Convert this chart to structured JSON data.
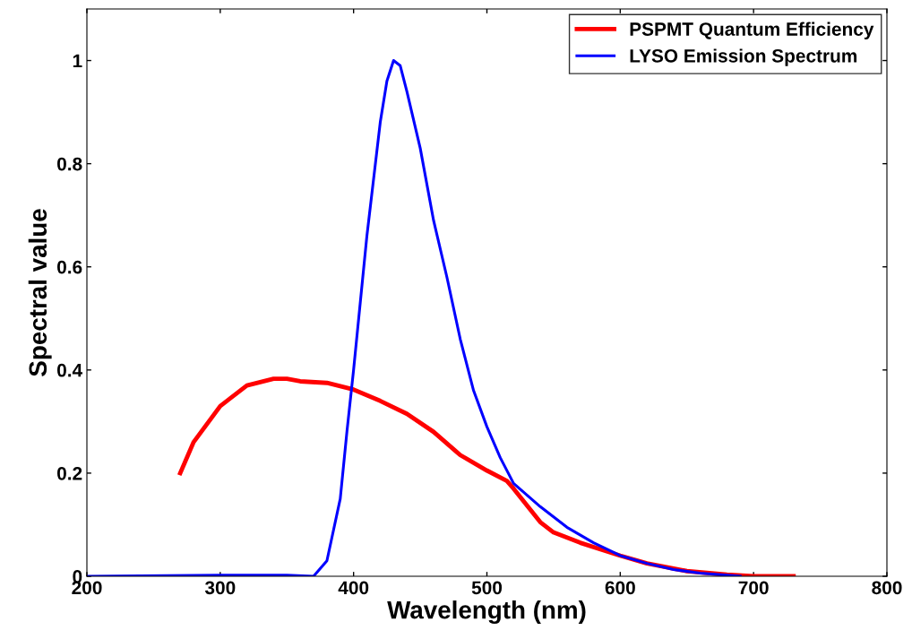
{
  "chart_data": {
    "type": "line",
    "xlabel": "Wavelength (nm)",
    "ylabel": "Spectral value",
    "xlim": [
      200,
      800
    ],
    "ylim": [
      0,
      1.1
    ],
    "xticks": [
      200,
      300,
      400,
      500,
      600,
      700,
      800
    ],
    "yticks": [
      0,
      0.2,
      0.4,
      0.6,
      0.8,
      1
    ],
    "legend": "top right",
    "grid": false,
    "marker": "none",
    "line_style": "solid",
    "series": [
      {
        "name": "PSPMT Quantum Efficiency",
        "color": "#ff0000",
        "x": [
          270,
          280,
          300,
          320,
          340,
          350,
          360,
          380,
          400,
          420,
          440,
          460,
          480,
          500,
          515,
          520,
          540,
          550,
          570,
          600,
          620,
          650,
          680,
          700,
          730
        ],
        "values": [
          0.2,
          0.26,
          0.33,
          0.37,
          0.383,
          0.383,
          0.378,
          0.375,
          0.362,
          0.34,
          0.315,
          0.28,
          0.235,
          0.205,
          0.185,
          0.17,
          0.105,
          0.085,
          0.065,
          0.04,
          0.025,
          0.01,
          0.003,
          0,
          0
        ]
      },
      {
        "name": "LYSO Emission Spectrum",
        "color": "#0000ff",
        "x": [
          200,
          300,
          350,
          370,
          380,
          390,
          395,
          400,
          410,
          420,
          425,
          430,
          435,
          440,
          450,
          460,
          470,
          480,
          490,
          500,
          510,
          520,
          540,
          560,
          580,
          600,
          620,
          640,
          660,
          680,
          690
        ],
        "values": [
          0,
          0.002,
          0.002,
          0,
          0.03,
          0.15,
          0.28,
          0.4,
          0.66,
          0.88,
          0.96,
          1.0,
          0.99,
          0.94,
          0.83,
          0.69,
          0.58,
          0.46,
          0.36,
          0.29,
          0.23,
          0.18,
          0.135,
          0.095,
          0.065,
          0.04,
          0.025,
          0.013,
          0.006,
          0.002,
          0
        ]
      }
    ]
  }
}
